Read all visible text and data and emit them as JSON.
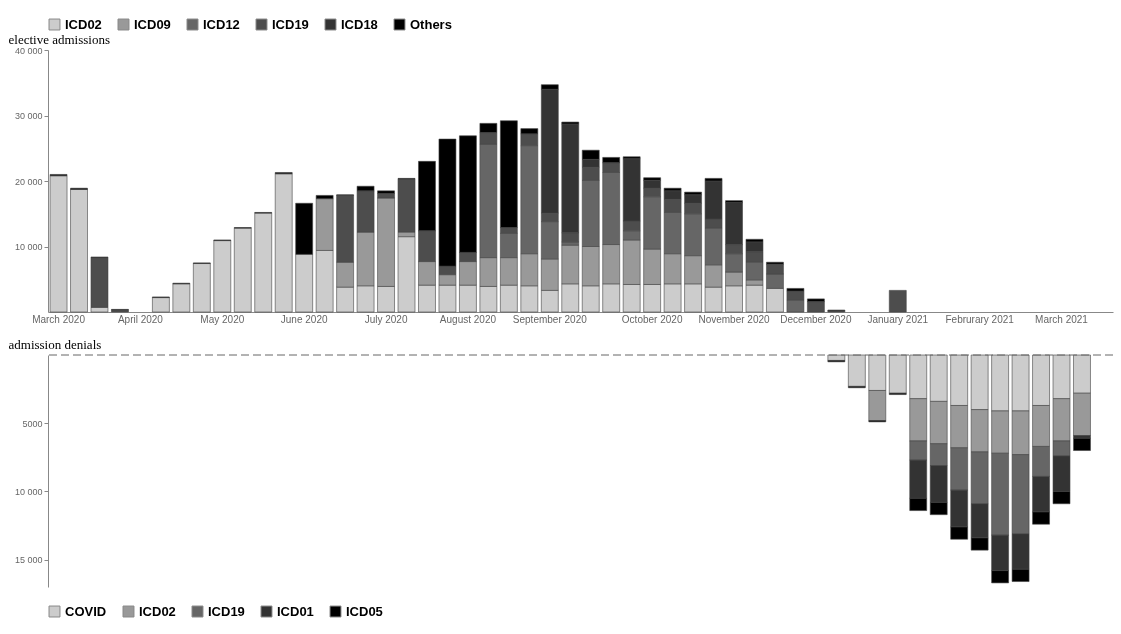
{
  "chart_data": [
    {
      "type": "bar",
      "stacked": true,
      "ylabel": "elective admissions",
      "legend": "top",
      "grid": false,
      "categories": [
        "March 2020",
        null,
        null,
        null,
        "April 2020",
        null,
        null,
        null,
        "May 2020",
        null,
        null,
        null,
        "June 2020",
        null,
        null,
        null,
        "July 2020",
        null,
        null,
        null,
        "August 2020",
        null,
        null,
        null,
        "September 2020",
        null,
        null,
        null,
        null,
        "October 2020",
        null,
        null,
        null,
        "November 2020",
        null,
        null,
        null,
        "December 2020",
        null,
        null,
        null,
        "January 2021",
        null,
        null,
        null,
        "Februrary 2021",
        null,
        null,
        null,
        "March 2021",
        null,
        null
      ],
      "ylim": [
        0,
        40000
      ],
      "yticks": [
        {
          "value": 10000,
          "label": "10 000"
        },
        {
          "value": 20000,
          "label": "20 000"
        },
        {
          "value": 30000,
          "label": "30 000"
        },
        {
          "value": 40000,
          "label": "40 000"
        }
      ],
      "series": [
        {
          "name": "ICD02",
          "color": "#cccccc",
          "values": [
            20800,
            18700,
            700,
            null,
            null,
            2200,
            4300,
            7400,
            10900,
            12800,
            15100,
            21100,
            8800,
            9400,
            3800,
            4000,
            3900,
            11500,
            4100,
            4100,
            4100,
            3900,
            4100,
            4000,
            3300,
            4300,
            4000,
            4300,
            4200,
            4200,
            4300,
            4300,
            3800,
            4000,
            4100,
            3600,
            null,
            null,
            null,
            null,
            null,
            null,
            null,
            null,
            null,
            null,
            null,
            null,
            null,
            null,
            null,
            null
          ]
        },
        {
          "name": "ICD09",
          "color": "#999999",
          "values": [
            null,
            null,
            null,
            null,
            null,
            null,
            null,
            null,
            null,
            null,
            null,
            null,
            null,
            7900,
            3800,
            8200,
            13500,
            700,
            3600,
            1600,
            3600,
            4400,
            4200,
            4900,
            4800,
            5900,
            6000,
            6000,
            6800,
            5400,
            4600,
            4300,
            3400,
            2100,
            800,
            null,
            null,
            null,
            null,
            null,
            null,
            null,
            null,
            null,
            null,
            null,
            null,
            null,
            null,
            null,
            null,
            null
          ]
        },
        {
          "name": "ICD12",
          "color": "#666666",
          "values": [
            null,
            null,
            null,
            null,
            null,
            null,
            null,
            null,
            null,
            null,
            null,
            null,
            null,
            null,
            null,
            null,
            null,
            null,
            null,
            null,
            null,
            17300,
            3700,
            16500,
            5700,
            500,
            10100,
            11000,
            1400,
            8000,
            6300,
            6400,
            5600,
            2800,
            2700,
            2200,
            1800,
            null,
            null,
            null,
            null,
            null,
            null,
            null,
            null,
            null,
            null,
            null,
            null,
            null,
            null,
            null
          ]
        },
        {
          "name": "ICD19",
          "color": "#4d4d4d",
          "values": [
            null,
            null,
            7600,
            300,
            null,
            null,
            null,
            null,
            null,
            null,
            null,
            null,
            null,
            null,
            10200,
            6300,
            700,
            8100,
            4700,
            1300,
            1400,
            1800,
            900,
            1800,
            1300,
            1400,
            2000,
            1500,
            1500,
            1300,
            2000,
            1600,
            1400,
            1400,
            1600,
            1500,
            1400,
            1600,
            200,
            null,
            null,
            3300,
            null,
            null,
            null,
            null,
            null,
            null,
            null,
            null,
            null,
            null
          ]
        },
        {
          "name": "ICD18",
          "color": "#333333",
          "values": [
            null,
            null,
            null,
            null,
            null,
            null,
            null,
            null,
            null,
            null,
            null,
            null,
            null,
            null,
            null,
            null,
            null,
            null,
            null,
            null,
            null,
            null,
            null,
            null,
            18900,
            16600,
            1200,
            null,
            9500,
            1200,
            1300,
            1300,
            5800,
            6400,
            1500,
            null,
            null,
            null,
            null,
            null,
            null,
            null,
            null,
            null,
            null,
            null,
            null,
            null,
            null,
            null,
            null,
            null
          ]
        },
        {
          "name": "Others",
          "color": "#000000",
          "values": [
            200,
            200,
            100,
            100,
            null,
            100,
            100,
            100,
            100,
            100,
            100,
            200,
            7800,
            500,
            100,
            700,
            400,
            100,
            10600,
            19400,
            17800,
            1400,
            16300,
            800,
            700,
            300,
            1400,
            800,
            300,
            400,
            400,
            400,
            400,
            300,
            400,
            300,
            400,
            400,
            100,
            null,
            null,
            null,
            null,
            null,
            null,
            null,
            null,
            null,
            null,
            null,
            null,
            null
          ]
        }
      ]
    },
    {
      "type": "bar",
      "stacked": true,
      "ylabel": "admission denials",
      "legend": "bottom",
      "grid": false,
      "tick_labels": "y",
      "categories": [
        null,
        null,
        null,
        null,
        null,
        null,
        null,
        null,
        null,
        null,
        null,
        null,
        null,
        null,
        null,
        null,
        null,
        null,
        null,
        null,
        null,
        null,
        null,
        null,
        null,
        null,
        null,
        null,
        null,
        null,
        null,
        null,
        null,
        null,
        null,
        null,
        null,
        null,
        null,
        null,
        null,
        null,
        null,
        null,
        null,
        null,
        null,
        null,
        null,
        null,
        null,
        null
      ],
      "ylim": [
        17000,
        0
      ],
      "yticks": [
        5000,
        {
          "value": 10000,
          "label": "10 000"
        },
        {
          "value": 15000,
          "label": "15 000"
        }
      ],
      "ref_lines": [
        {
          "axis": "y",
          "value": 0,
          "line_style": "dashed",
          "color": "#666666"
        }
      ],
      "series": [
        {
          "name": "COVID",
          "color": "#cccccc",
          "values": [
            null,
            null,
            null,
            null,
            null,
            null,
            null,
            null,
            null,
            null,
            null,
            null,
            null,
            null,
            null,
            null,
            null,
            null,
            null,
            null,
            null,
            null,
            null,
            null,
            null,
            null,
            null,
            null,
            null,
            null,
            null,
            null,
            null,
            null,
            null,
            null,
            null,
            null,
            400,
            2300,
            2600,
            2800,
            3200,
            3400,
            3700,
            4000,
            4100,
            4100,
            3700,
            3200,
            2800,
            null
          ]
        },
        {
          "name": "ICD02",
          "color": "#999999",
          "values": [
            null,
            null,
            null,
            null,
            null,
            null,
            null,
            null,
            null,
            null,
            null,
            null,
            null,
            null,
            null,
            null,
            null,
            null,
            null,
            null,
            null,
            null,
            null,
            null,
            null,
            null,
            null,
            null,
            null,
            null,
            null,
            null,
            null,
            null,
            null,
            null,
            null,
            null,
            null,
            null,
            2200,
            null,
            3100,
            3100,
            3100,
            3100,
            3100,
            3200,
            3000,
            3100,
            3100,
            null
          ]
        },
        {
          "name": "ICD19",
          "color": "#666666",
          "values": [
            null,
            null,
            null,
            null,
            null,
            null,
            null,
            null,
            null,
            null,
            null,
            null,
            null,
            null,
            null,
            null,
            null,
            null,
            null,
            null,
            null,
            null,
            null,
            null,
            null,
            null,
            null,
            null,
            null,
            null,
            null,
            null,
            null,
            null,
            null,
            null,
            null,
            null,
            null,
            null,
            null,
            null,
            1400,
            1600,
            3100,
            3800,
            6000,
            5800,
            2200,
            1100,
            null,
            null
          ]
        },
        {
          "name": "ICD01",
          "color": "#333333",
          "values": [
            null,
            null,
            null,
            null,
            null,
            null,
            null,
            null,
            null,
            null,
            null,
            null,
            null,
            null,
            null,
            null,
            null,
            null,
            null,
            null,
            null,
            null,
            null,
            null,
            null,
            null,
            null,
            null,
            null,
            null,
            null,
            null,
            null,
            null,
            null,
            null,
            null,
            null,
            null,
            null,
            null,
            null,
            2800,
            2700,
            2700,
            2500,
            2600,
            2600,
            2600,
            2600,
            200,
            null
          ]
        },
        {
          "name": "ICD05",
          "color": "#000000",
          "values": [
            null,
            null,
            null,
            null,
            null,
            null,
            null,
            null,
            null,
            null,
            null,
            null,
            null,
            null,
            null,
            null,
            null,
            null,
            null,
            null,
            null,
            null,
            null,
            null,
            null,
            null,
            null,
            null,
            null,
            null,
            null,
            null,
            null,
            null,
            null,
            null,
            null,
            null,
            100,
            100,
            100,
            100,
            900,
            900,
            900,
            900,
            900,
            900,
            900,
            900,
            900,
            null
          ]
        }
      ]
    }
  ]
}
